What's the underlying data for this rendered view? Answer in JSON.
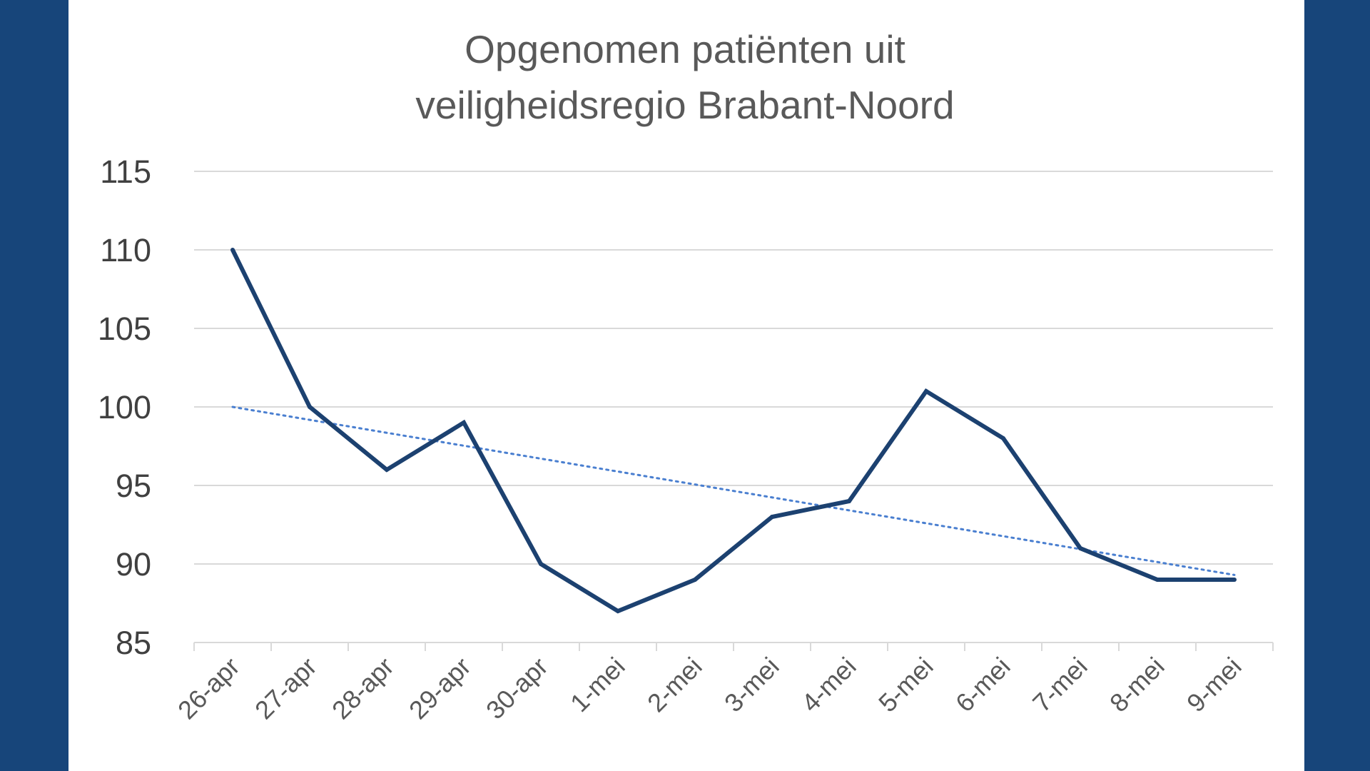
{
  "chart_data": {
    "type": "line",
    "title_lines": [
      "Opgenomen patiënten uit",
      "veiligheidsregio Brabant-Noord"
    ],
    "categories": [
      "26-apr",
      "27-apr",
      "28-apr",
      "29-apr",
      "30-apr",
      "1-mei",
      "2-mei",
      "3-mei",
      "4-mei",
      "5-mei",
      "6-mei",
      "7-mei",
      "8-mei",
      "9-mei"
    ],
    "series": [
      {
        "values": [
          110,
          100,
          96,
          99,
          90,
          87,
          89,
          93,
          94,
          101,
          98,
          91,
          89,
          89
        ],
        "color": "#1c4170"
      }
    ],
    "trendline": {
      "type": "linear",
      "style": "dotted",
      "color": "#4a7fd0",
      "start": 100,
      "end": 89.3
    },
    "ylim": [
      85,
      115
    ],
    "yticks": [
      85,
      90,
      95,
      100,
      105,
      110,
      115
    ],
    "grid": true,
    "legend": "none"
  }
}
